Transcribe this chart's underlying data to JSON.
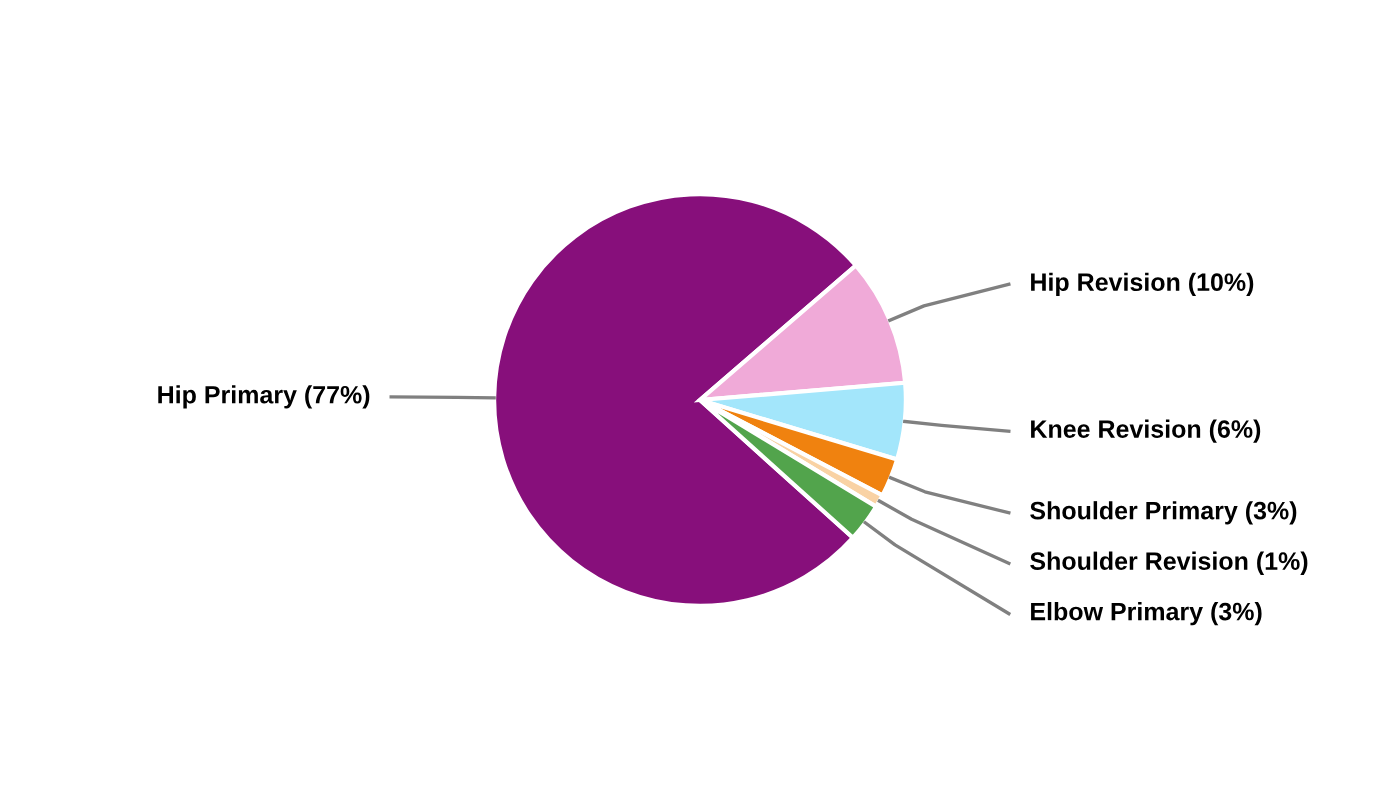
{
  "chart_data": {
    "type": "pie",
    "categories": [
      "Hip Primary (77%)",
      "Hip Revision (10%)",
      "Knee Revision (6%)",
      "Shoulder Primary (3%)",
      "Shoulder Revision (1%)",
      "Elbow Primary (3%)"
    ],
    "values": [
      77,
      10,
      6,
      3,
      1,
      3
    ],
    "colors": [
      "#870f7b",
      "#f0aad8",
      "#a3e6fb",
      "#f0820f",
      "#f9d2a4",
      "#52a44c"
    ]
  }
}
